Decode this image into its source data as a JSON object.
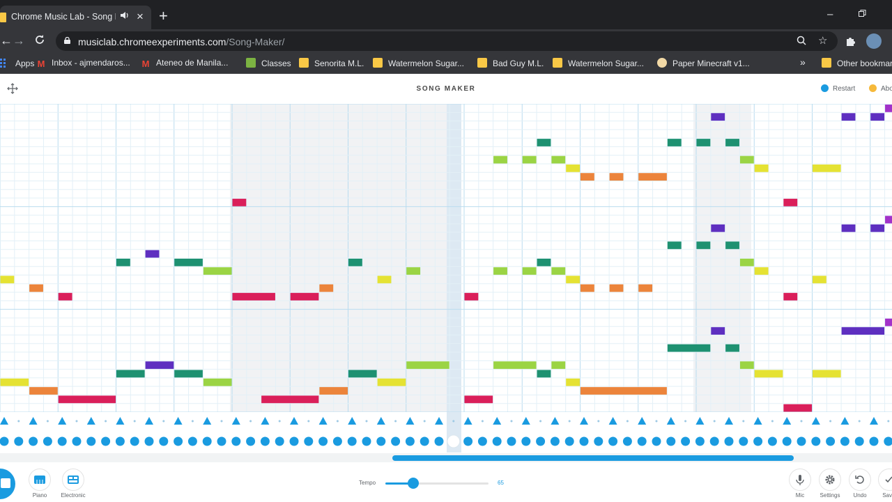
{
  "browser": {
    "tab_title": "Chrome Music Lab - Song M",
    "tab_audio_icon": "speaker-icon",
    "url_domain": "musiclab.chromeexperiments.com",
    "url_path": "/Song-Maker/",
    "bookmarks": [
      {
        "label": "Apps",
        "icon": "apps-grid-icon"
      },
      {
        "label": "Inbox - ajmendaros...",
        "icon": "gmail-icon"
      },
      {
        "label": "Ateneo de Manila...",
        "icon": "gmail-icon"
      },
      {
        "label": "Classes",
        "icon": "classroom-icon"
      },
      {
        "label": "Senorita M.L.",
        "icon": "music-lab-icon"
      },
      {
        "label": "Watermelon Sugar...",
        "icon": "music-lab-icon"
      },
      {
        "label": "Bad Guy M.L.",
        "icon": "music-lab-icon"
      },
      {
        "label": "Watermelon Sugar...",
        "icon": "music-lab-icon"
      },
      {
        "label": "Paper Minecraft v1...",
        "icon": "paper-icon"
      }
    ],
    "bookmarks_more": "»",
    "other_bookmarks": "Other bookmar"
  },
  "app": {
    "title": "SONG MAKER",
    "restart_label": "Restart",
    "about_label": "Abo"
  },
  "song": {
    "columns": 32,
    "playhead_column": 15,
    "rows": 36,
    "colors": {
      "C": "#da1f5a",
      "D": "#ec843b",
      "E": "#e5e233",
      "F": "#9bd444",
      "G": "#1e9171",
      "A": "#5e2fc0",
      "B": "#a232c9"
    },
    "notes": [
      {
        "row": 34,
        "start": 2,
        "len": 2,
        "pitch": "C"
      },
      {
        "row": 33,
        "start": 1,
        "len": 1,
        "pitch": "D"
      },
      {
        "row": 32,
        "start": 0,
        "len": 1,
        "pitch": "E"
      },
      {
        "row": 20,
        "start": 0,
        "len": 0.5,
        "pitch": "E"
      },
      {
        "row": 21,
        "start": 1,
        "len": 0.5,
        "pitch": "D"
      },
      {
        "row": 22,
        "start": 2,
        "len": 0.5,
        "pitch": "C"
      },
      {
        "row": 19,
        "start": 7,
        "len": 1,
        "pitch": "F"
      },
      {
        "row": 18,
        "start": 6,
        "len": 1,
        "pitch": "G"
      },
      {
        "row": 18,
        "start": 4,
        "len": 0.5,
        "pitch": "G"
      },
      {
        "row": 17,
        "start": 5,
        "len": 0.5,
        "pitch": "A"
      },
      {
        "row": 30,
        "start": 5,
        "len": 1,
        "pitch": "A"
      },
      {
        "row": 31,
        "start": 4,
        "len": 1,
        "pitch": "G"
      },
      {
        "row": 31,
        "start": 6,
        "len": 1,
        "pitch": "G"
      },
      {
        "row": 32,
        "start": 7,
        "len": 1,
        "pitch": "F"
      },
      {
        "row": 11,
        "start": 8,
        "len": 0.5,
        "pitch": "C"
      },
      {
        "row": 22,
        "start": 8,
        "len": 1.5,
        "pitch": "C"
      },
      {
        "row": 22,
        "start": 10,
        "len": 1,
        "pitch": "C"
      },
      {
        "row": 21,
        "start": 11,
        "len": 0.5,
        "pitch": "D"
      },
      {
        "row": 20,
        "start": 13,
        "len": 0.5,
        "pitch": "E"
      },
      {
        "row": 18,
        "start": 12,
        "len": 0.5,
        "pitch": "G"
      },
      {
        "row": 19,
        "start": 14,
        "len": 0.5,
        "pitch": "F"
      },
      {
        "row": 34,
        "start": 9,
        "len": 2,
        "pitch": "C"
      },
      {
        "row": 33,
        "start": 11,
        "len": 1,
        "pitch": "D"
      },
      {
        "row": 31,
        "start": 12,
        "len": 1,
        "pitch": "G"
      },
      {
        "row": 32,
        "start": 13,
        "len": 1,
        "pitch": "E"
      },
      {
        "row": 30,
        "start": 14,
        "len": 1.5,
        "pitch": "F"
      },
      {
        "row": 22,
        "start": 16,
        "len": 0.5,
        "pitch": "C"
      },
      {
        "row": 34,
        "start": 16,
        "len": 1,
        "pitch": "C"
      },
      {
        "row": 6,
        "start": 17,
        "len": 0.5,
        "pitch": "F"
      },
      {
        "row": 6,
        "start": 18,
        "len": 0.5,
        "pitch": "F"
      },
      {
        "row": 4,
        "start": 18.5,
        "len": 0.5,
        "pitch": "G"
      },
      {
        "row": 6,
        "start": 19,
        "len": 0.5,
        "pitch": "F"
      },
      {
        "row": 7,
        "start": 19.5,
        "len": 0.5,
        "pitch": "E"
      },
      {
        "row": 8,
        "start": 20,
        "len": 0.5,
        "pitch": "D"
      },
      {
        "row": 8,
        "start": 21,
        "len": 0.5,
        "pitch": "D"
      },
      {
        "row": 8,
        "start": 22,
        "len": 1,
        "pitch": "D"
      },
      {
        "row": 19,
        "start": 17,
        "len": 0.5,
        "pitch": "F"
      },
      {
        "row": 19,
        "start": 18,
        "len": 0.5,
        "pitch": "F"
      },
      {
        "row": 18,
        "start": 18.5,
        "len": 0.5,
        "pitch": "G"
      },
      {
        "row": 19,
        "start": 19,
        "len": 0.5,
        "pitch": "F"
      },
      {
        "row": 20,
        "start": 19.5,
        "len": 0.5,
        "pitch": "E"
      },
      {
        "row": 21,
        "start": 20,
        "len": 0.5,
        "pitch": "D"
      },
      {
        "row": 21,
        "start": 21,
        "len": 0.5,
        "pitch": "D"
      },
      {
        "row": 21,
        "start": 22,
        "len": 0.5,
        "pitch": "D"
      },
      {
        "row": 30,
        "start": 17,
        "len": 1.5,
        "pitch": "F"
      },
      {
        "row": 31,
        "start": 18.5,
        "len": 0.5,
        "pitch": "G"
      },
      {
        "row": 30,
        "start": 19,
        "len": 0.5,
        "pitch": "F"
      },
      {
        "row": 32,
        "start": 19.5,
        "len": 0.5,
        "pitch": "E"
      },
      {
        "row": 33,
        "start": 20,
        "len": 3,
        "pitch": "D"
      },
      {
        "row": 1,
        "start": 24.5,
        "len": 0.5,
        "pitch": "A"
      },
      {
        "row": 4,
        "start": 23,
        "len": 0.5,
        "pitch": "G"
      },
      {
        "row": 4,
        "start": 24,
        "len": 0.5,
        "pitch": "G"
      },
      {
        "row": 4,
        "start": 25,
        "len": 0.5,
        "pitch": "G"
      },
      {
        "row": 6,
        "start": 25.5,
        "len": 0.5,
        "pitch": "F"
      },
      {
        "row": 7,
        "start": 26,
        "len": 0.5,
        "pitch": "E"
      },
      {
        "row": 11,
        "start": 27,
        "len": 0.5,
        "pitch": "C"
      },
      {
        "row": 14,
        "start": 24.5,
        "len": 0.5,
        "pitch": "A"
      },
      {
        "row": 16,
        "start": 23,
        "len": 0.5,
        "pitch": "G"
      },
      {
        "row": 16,
        "start": 24,
        "len": 0.5,
        "pitch": "G"
      },
      {
        "row": 16,
        "start": 25,
        "len": 0.5,
        "pitch": "G"
      },
      {
        "row": 18,
        "start": 25.5,
        "len": 0.5,
        "pitch": "F"
      },
      {
        "row": 19,
        "start": 26,
        "len": 0.5,
        "pitch": "E"
      },
      {
        "row": 22,
        "start": 27,
        "len": 0.5,
        "pitch": "C"
      },
      {
        "row": 26,
        "start": 24.5,
        "len": 0.5,
        "pitch": "A"
      },
      {
        "row": 28,
        "start": 23,
        "len": 1.5,
        "pitch": "G"
      },
      {
        "row": 28,
        "start": 25,
        "len": 0.5,
        "pitch": "G"
      },
      {
        "row": 30,
        "start": 25.5,
        "len": 0.5,
        "pitch": "F"
      },
      {
        "row": 31,
        "start": 26,
        "len": 1,
        "pitch": "E"
      },
      {
        "row": 35,
        "start": 27,
        "len": 1,
        "pitch": "C"
      },
      {
        "row": 7,
        "start": 28,
        "len": 1,
        "pitch": "E"
      },
      {
        "row": 1,
        "start": 29,
        "len": 0.5,
        "pitch": "A"
      },
      {
        "row": 1,
        "start": 30,
        "len": 0.5,
        "pitch": "A"
      },
      {
        "row": 0,
        "start": 30.5,
        "len": 0.5,
        "pitch": "B"
      },
      {
        "row": 20,
        "start": 28,
        "len": 0.5,
        "pitch": "E"
      },
      {
        "row": 14,
        "start": 29,
        "len": 0.5,
        "pitch": "A"
      },
      {
        "row": 14,
        "start": 30,
        "len": 0.5,
        "pitch": "A"
      },
      {
        "row": 13,
        "start": 30.5,
        "len": 0.5,
        "pitch": "B"
      },
      {
        "row": 31,
        "start": 28,
        "len": 1,
        "pitch": "E"
      },
      {
        "row": 26,
        "start": 29,
        "len": 1.5,
        "pitch": "A"
      },
      {
        "row": 25,
        "start": 30.5,
        "len": 0.5,
        "pitch": "B"
      }
    ]
  },
  "percussion": {
    "triangle_steps": "every beat",
    "circle_steps": "every half beat"
  },
  "toolbar": {
    "play_icon": "stop-icon",
    "piano_label": "Piano",
    "electronic_label": "Electronic",
    "tempo_label": "Tempo",
    "tempo_value": "65",
    "tempo_fraction": 0.27,
    "mic_label": "Mic",
    "settings_label": "Settings",
    "undo_label": "Undo",
    "save_label": "Sav"
  },
  "scroll": {
    "position_fraction": 0.44,
    "visible_fraction": 0.45
  }
}
